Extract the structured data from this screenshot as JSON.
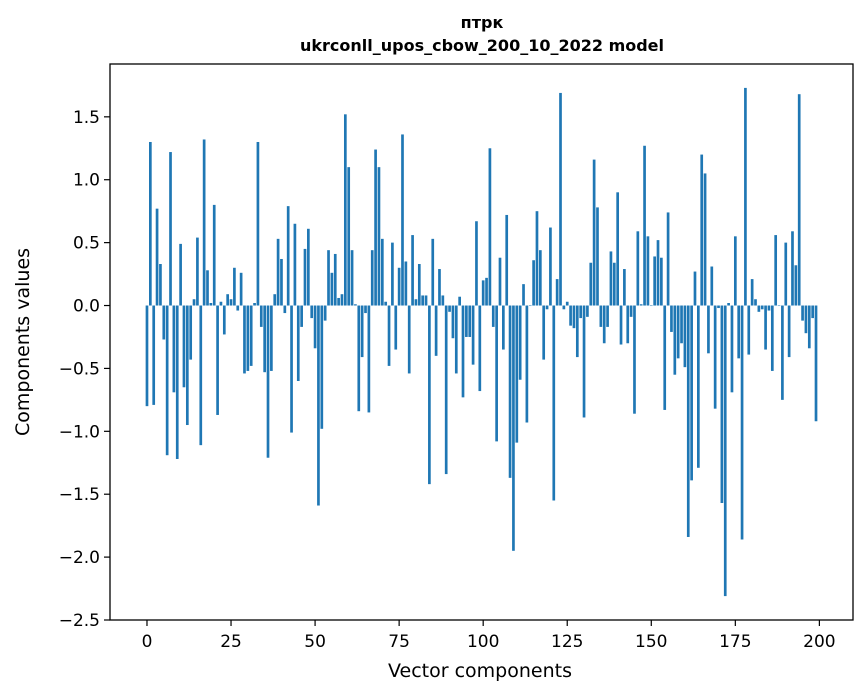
{
  "chart_data": {
    "type": "bar",
    "title": "птрк",
    "subtitle": "ukrconll_upos_cbow_200_10_2022 model",
    "xlabel": "Vector components",
    "ylabel": "Components values",
    "xlim": [
      -11,
      210
    ],
    "ylim": [
      -2.5,
      1.92
    ],
    "xticks": [
      0,
      25,
      50,
      75,
      100,
      125,
      150,
      175,
      200
    ],
    "yticks": [
      -2.5,
      -2.0,
      -1.5,
      -1.0,
      -0.5,
      0.0,
      0.5,
      1.0,
      1.5
    ],
    "ytick_labels": [
      "−2.5",
      "−2.0",
      "−1.5",
      "−1.0",
      "−0.5",
      "0.0",
      "0.5",
      "1.0",
      "1.5"
    ],
    "bar_color": "#1f77b4",
    "grid": false,
    "legend": "none",
    "x": [
      0,
      1,
      2,
      3,
      4,
      5,
      6,
      7,
      8,
      9,
      10,
      11,
      12,
      13,
      14,
      15,
      16,
      17,
      18,
      19,
      20,
      21,
      22,
      23,
      24,
      25,
      26,
      27,
      28,
      29,
      30,
      31,
      32,
      33,
      34,
      35,
      36,
      37,
      38,
      39,
      40,
      41,
      42,
      43,
      44,
      45,
      46,
      47,
      48,
      49,
      50,
      51,
      52,
      53,
      54,
      55,
      56,
      57,
      58,
      59,
      60,
      61,
      62,
      63,
      64,
      65,
      66,
      67,
      68,
      69,
      70,
      71,
      72,
      73,
      74,
      75,
      76,
      77,
      78,
      79,
      80,
      81,
      82,
      83,
      84,
      85,
      86,
      87,
      88,
      89,
      90,
      91,
      92,
      93,
      94,
      95,
      96,
      97,
      98,
      99,
      100,
      101,
      102,
      103,
      104,
      105,
      106,
      107,
      108,
      109,
      110,
      111,
      112,
      113,
      114,
      115,
      116,
      117,
      118,
      119,
      120,
      121,
      122,
      123,
      124,
      125,
      126,
      127,
      128,
      129,
      130,
      131,
      132,
      133,
      134,
      135,
      136,
      137,
      138,
      139,
      140,
      141,
      142,
      143,
      144,
      145,
      146,
      147,
      148,
      149,
      150,
      151,
      152,
      153,
      154,
      155,
      156,
      157,
      158,
      159,
      160,
      161,
      162,
      163,
      164,
      165,
      166,
      167,
      168,
      169,
      170,
      171,
      172,
      173,
      174,
      175,
      176,
      177,
      178,
      179,
      180,
      181,
      182,
      183,
      184,
      185,
      186,
      187,
      188,
      189,
      190,
      191,
      192,
      193,
      194,
      195,
      196,
      197,
      198,
      199
    ],
    "values": [
      -0.8,
      1.3,
      -0.79,
      0.77,
      0.33,
      -0.27,
      -1.19,
      1.22,
      -0.69,
      -1.22,
      0.49,
      -0.65,
      -0.95,
      -0.43,
      0.05,
      0.54,
      -1.11,
      1.32,
      0.28,
      0.02,
      0.8,
      -0.87,
      0.03,
      -0.23,
      0.09,
      0.05,
      0.3,
      -0.04,
      0.26,
      -0.54,
      -0.52,
      -0.48,
      0.02,
      1.3,
      -0.17,
      -0.53,
      -1.21,
      -0.52,
      0.09,
      0.53,
      0.37,
      -0.06,
      0.79,
      -1.01,
      0.65,
      -0.6,
      -0.17,
      0.45,
      0.61,
      -0.1,
      -0.34,
      -1.59,
      -0.98,
      -0.12,
      0.44,
      0.26,
      0.41,
      0.06,
      0.09,
      1.52,
      1.1,
      0.44,
      0.01,
      -0.84,
      -0.41,
      -0.06,
      -0.85,
      0.44,
      1.24,
      1.1,
      0.53,
      0.03,
      -0.48,
      0.5,
      -0.35,
      0.3,
      1.36,
      0.35,
      -0.54,
      0.56,
      0.05,
      0.33,
      0.08,
      0.08,
      -1.42,
      0.53,
      -0.4,
      0.29,
      0.08,
      -1.34,
      -0.05,
      -0.26,
      -0.54,
      0.07,
      -0.73,
      -0.25,
      -0.25,
      -0.47,
      0.67,
      -0.68,
      0.2,
      0.22,
      1.25,
      -0.17,
      -1.08,
      0.38,
      -0.35,
      0.72,
      -1.37,
      -1.95,
      -1.09,
      -0.59,
      0.17,
      -0.93,
      0.0,
      0.36,
      0.75,
      0.44,
      -0.43,
      -0.03,
      0.62,
      -1.55,
      0.21,
      1.69,
      -0.03,
      0.03,
      -0.16,
      -0.18,
      -0.41,
      -0.1,
      -0.89,
      -0.09,
      0.34,
      1.16,
      0.78,
      -0.17,
      -0.3,
      -0.17,
      0.43,
      0.34,
      0.9,
      -0.31,
      0.29,
      -0.3,
      -0.09,
      -0.86,
      0.59,
      0.01,
      1.27,
      0.55,
      0.0,
      0.39,
      0.52,
      0.38,
      -0.83,
      0.74,
      -0.21,
      -0.55,
      -0.42,
      -0.3,
      -0.49,
      -1.84,
      -1.39,
      0.27,
      -1.29,
      1.2,
      1.05,
      -0.38,
      0.31,
      -0.82,
      -0.02,
      -1.57,
      -2.31,
      0.02,
      -0.69,
      0.55,
      -0.42,
      -1.86,
      1.73,
      -0.39,
      0.21,
      0.05,
      -0.05,
      -0.03,
      -0.35,
      -0.04,
      -0.52,
      0.56,
      0.0,
      -0.75,
      0.5,
      -0.41,
      0.59,
      0.32,
      1.68,
      -0.12,
      -0.22,
      -0.34,
      -0.1,
      -0.92
    ]
  }
}
